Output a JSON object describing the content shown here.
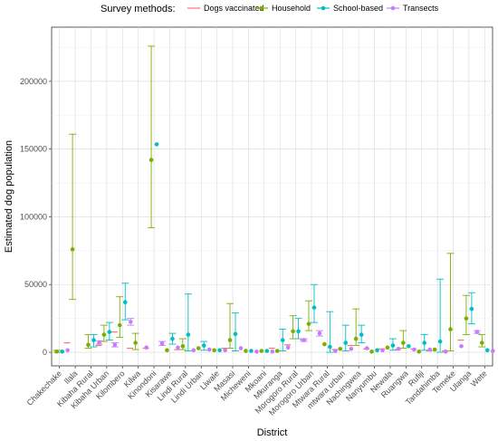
{
  "chart_data": {
    "type": "scatter",
    "xlabel": "District",
    "ylabel": "Estimated dog population",
    "ylim": [
      -10000,
      240000
    ],
    "yticks": [
      0,
      50000,
      100000,
      150000,
      200000
    ],
    "grid": true,
    "legend": {
      "title": "Survey methods:",
      "position": "top",
      "entries": [
        "Dogs vaccinated",
        "Household",
        "School-based",
        "Transects"
      ]
    },
    "colors": {
      "Dogs vaccinated": "#F8766D",
      "Household": "#7CAE00",
      "School-based": "#00BFC4",
      "Transects": "#C77CFF"
    },
    "categories": [
      "Chakechake",
      "Ilala",
      "Kibaha Rural",
      "Kibaha Urban",
      "Kilombero",
      "Kilwa",
      "Kinondoni",
      "Kisarawe",
      "Lindi Rural",
      "Lindi Urban",
      "Liwale",
      "Masasi",
      "Micheweni",
      "Mkoani",
      "Mkuranga",
      "Morogoro Rural",
      "Morogoro Urban",
      "Mtwara Rural",
      "mtwara urban",
      "Nachingwea",
      "Nanyumbu",
      "Newala",
      "Ruangwa",
      "Rufiji",
      "Tandahimba",
      "Temeke",
      "Ulanga",
      "Wete"
    ],
    "series": [
      {
        "name": "Dogs vaccinated",
        "values": [
          null,
          7000,
          null,
          5000,
          15000,
          3000,
          3000,
          null,
          2000,
          null,
          null,
          3000,
          null,
          null,
          3000,
          5500,
          9000,
          null,
          2000,
          5000,
          2500,
          2500,
          2000,
          2500,
          1000,
          1000,
          9000,
          null
        ]
      },
      {
        "name": "Household",
        "values": [
          500,
          76000,
          5500,
          13000,
          20000,
          7000,
          142000,
          1500,
          4500,
          3000,
          1500,
          9000,
          1000,
          1000,
          1000,
          15500,
          21000,
          6000,
          2500,
          10000,
          500,
          3500,
          7000,
          500,
          2000,
          17000,
          25000,
          7000
        ]
      },
      {
        "name": "School-based",
        "values": [
          500,
          null,
          9000,
          15000,
          37000,
          null,
          153500,
          10000,
          13000,
          5000,
          1500,
          13500,
          1000,
          1000,
          9000,
          15500,
          33000,
          4000,
          7000,
          13000,
          1500,
          5000,
          4500,
          7000,
          8000,
          null,
          32000,
          1500
        ]
      },
      {
        "name": "Transects",
        "values": [
          1500,
          null,
          7000,
          5500,
          22500,
          3500,
          6500,
          3500,
          1500,
          2000,
          1500,
          3000,
          500,
          500,
          3500,
          9000,
          14000,
          1000,
          2500,
          3000,
          1500,
          2500,
          2000,
          2000,
          500,
          4500,
          15000,
          1000
        ]
      }
    ],
    "error_bars": [
      {
        "series": "Household",
        "lower": [
          0,
          39000,
          3000,
          8000,
          11000,
          2000,
          92000,
          null,
          2000,
          null,
          null,
          3000,
          null,
          null,
          null,
          10000,
          16000,
          null,
          null,
          5000,
          null,
          null,
          3000,
          null,
          null,
          1000,
          13000,
          4000
        ],
        "upper": [
          1500,
          161000,
          13000,
          20000,
          41000,
          14000,
          226000,
          null,
          10000,
          null,
          10000,
          36000,
          8000,
          null,
          null,
          27000,
          38000,
          null,
          null,
          32000,
          null,
          null,
          16000,
          null,
          null,
          73000,
          42000,
          13000
        ]
      },
      {
        "series": "School-based",
        "values_index": "School-based",
        "lower": [
          null,
          null,
          4000,
          9000,
          24000,
          null,
          null,
          6000,
          1000,
          1500,
          null,
          1000,
          null,
          null,
          1000,
          10000,
          22000,
          0,
          1000,
          7000,
          null,
          1500,
          null,
          1500,
          0,
          null,
          21000,
          null
        ],
        "upper": [
          null,
          null,
          13000,
          22000,
          51000,
          null,
          null,
          14000,
          43000,
          8000,
          null,
          29000,
          null,
          null,
          17000,
          25000,
          50000,
          30000,
          20000,
          20000,
          7000,
          10000,
          null,
          13000,
          54000,
          null,
          44000,
          null
        ]
      },
      {
        "series": "Transects",
        "lower": [
          null,
          null,
          6000,
          4000,
          20000,
          null,
          5000,
          null,
          null,
          null,
          null,
          null,
          null,
          null,
          null,
          8000,
          12000,
          null,
          null,
          null,
          null,
          null,
          null,
          null,
          null,
          null,
          14000,
          null
        ],
        "upper": [
          null,
          null,
          8500,
          7000,
          25000,
          null,
          8000,
          null,
          null,
          null,
          null,
          null,
          null,
          null,
          null,
          10000,
          16000,
          null,
          null,
          null,
          null,
          null,
          null,
          null,
          null,
          null,
          16000,
          null
        ]
      }
    ]
  }
}
